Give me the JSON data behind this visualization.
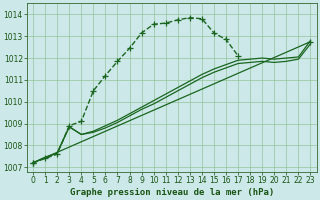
{
  "title": "Graphe pression niveau de la mer (hPa)",
  "bg_color": "#cce8e8",
  "grid_color": "#88bb88",
  "xlim": [
    -0.5,
    23.5
  ],
  "ylim": [
    1006.8,
    1014.5
  ],
  "yticks": [
    1007,
    1008,
    1009,
    1010,
    1011,
    1012,
    1013,
    1014
  ],
  "xticks": [
    0,
    1,
    2,
    3,
    4,
    5,
    6,
    7,
    8,
    9,
    10,
    11,
    12,
    13,
    14,
    15,
    16,
    17,
    18,
    19,
    20,
    21,
    22,
    23
  ],
  "series_dashed": {
    "x": [
      0,
      1,
      2,
      3,
      4,
      5,
      6,
      7,
      8,
      9,
      10,
      11,
      12,
      13,
      14,
      15,
      16,
      17
    ],
    "y": [
      1007.2,
      1007.4,
      1007.6,
      1008.9,
      1009.1,
      1010.5,
      1011.2,
      1011.85,
      1012.45,
      1013.15,
      1013.55,
      1013.6,
      1013.75,
      1013.85,
      1013.8,
      1013.15,
      1012.85,
      1012.1
    ],
    "color": "#1a6620",
    "lw": 1.0,
    "marker": "+",
    "ms": 5
  },
  "series_solid1": {
    "x": [
      0,
      1,
      2,
      3,
      4,
      5,
      6,
      7,
      8,
      9,
      10,
      11,
      12,
      13,
      14,
      15,
      16,
      17,
      18,
      19,
      20,
      21,
      22,
      23
    ],
    "y": [
      1007.2,
      1007.45,
      1007.65,
      1008.85,
      1008.5,
      1008.65,
      1008.9,
      1009.15,
      1009.45,
      1009.75,
      1010.05,
      1010.35,
      1010.65,
      1010.95,
      1011.25,
      1011.5,
      1011.7,
      1011.9,
      1011.95,
      1012.0,
      1011.95,
      1012.0,
      1012.05,
      1012.8
    ],
    "color": "#1a6620",
    "lw": 0.9
  },
  "series_solid2": {
    "x": [
      0,
      1,
      2,
      3,
      4,
      5,
      6,
      7,
      8,
      9,
      10,
      11,
      12,
      13,
      14,
      15,
      16,
      17,
      18,
      19,
      20,
      21,
      22,
      23
    ],
    "y": [
      1007.2,
      1007.45,
      1007.65,
      1008.85,
      1008.5,
      1008.6,
      1008.8,
      1009.05,
      1009.35,
      1009.65,
      1009.9,
      1010.2,
      1010.5,
      1010.8,
      1011.1,
      1011.35,
      1011.55,
      1011.75,
      1011.8,
      1011.85,
      1011.8,
      1011.85,
      1011.95,
      1012.65
    ],
    "color": "#1a6620",
    "lw": 0.9
  },
  "series_straight": {
    "x": [
      0,
      23
    ],
    "y": [
      1007.2,
      1012.75
    ],
    "color": "#1a6620",
    "lw": 0.9,
    "marker": "+",
    "ms": 5
  },
  "xlabel_color": "#1a5515",
  "xlabel_fontsize": 6.5,
  "tick_fontsize": 5.5,
  "tick_color": "#1a5515",
  "axis_color": "#336633"
}
